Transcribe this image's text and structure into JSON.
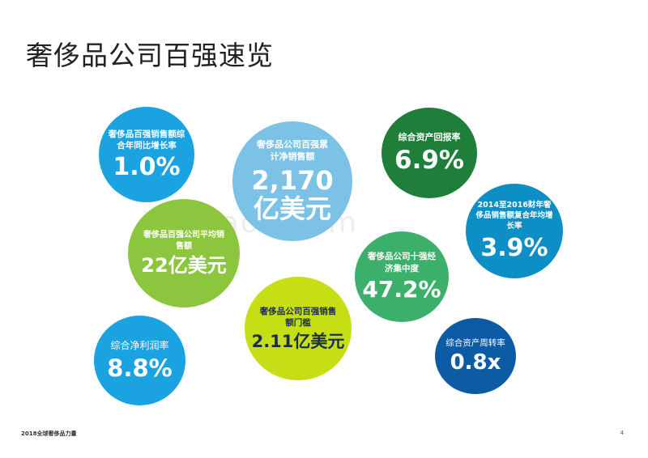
{
  "title": "奢侈品公司百强速览",
  "bubbles": [
    {
      "label": "奢侈品百强销售额综合年同比增长率",
      "value": "1.0%",
      "color": "#1aa3e0"
    },
    {
      "label": "奢侈品公司百强累计净销售额",
      "value": "2,170亿美元",
      "color": "#7cc2e6"
    },
    {
      "label": "综合资产回报率",
      "value": "6.9%",
      "color": "#1e7e3a"
    },
    {
      "label": "2014至2016财年奢侈品销售额复合年均增长率",
      "value": "3.9%",
      "color": "#0d8fc6"
    },
    {
      "label": "奢侈品百强公司平均销售额",
      "value": "22亿美元",
      "color": "#8cc63f"
    },
    {
      "label": "奢侈品公司十强经济集中度",
      "value": "47.2%",
      "color": "#3cb06a"
    },
    {
      "label": "奢侈品公司百强销售额门槛",
      "value": "2.11亿美元",
      "color": "#c6de14"
    },
    {
      "label": "综合净利润率",
      "value": "8.8%",
      "color": "#1aa3e0"
    },
    {
      "label": "综合资产周转率",
      "value": "0.8x",
      "color": "#0d5aa5"
    }
  ],
  "watermark": "baogao8.com",
  "footer": "2018全球奢侈品力量",
  "page_number": "4"
}
